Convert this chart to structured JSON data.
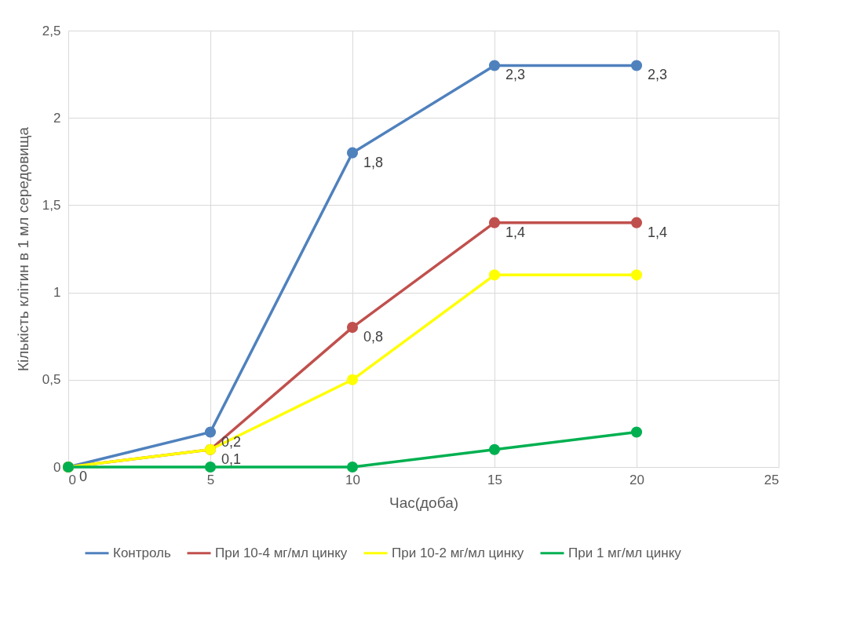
{
  "chart_data": {
    "type": "line",
    "xlabel": "Час(доба)",
    "ylabel": "Кількість клітин в 1 мл середовища",
    "x": [
      0,
      5,
      10,
      15,
      20
    ],
    "series": [
      {
        "name": "Контроль",
        "color": "#4f81bd",
        "values": [
          0,
          0.2,
          1.8,
          2.3,
          2.3
        ],
        "value_labels": [
          "0",
          "0,2",
          "1,8",
          "2,3",
          "2,3"
        ]
      },
      {
        "name": "При 10-4 мг/мл цинку",
        "color": "#c0504d",
        "values": [
          0,
          0.1,
          0.8,
          1.4,
          1.4
        ],
        "value_labels": [
          null,
          "0,1",
          "0,8",
          "1,4",
          "1,4"
        ]
      },
      {
        "name": "При 10-2 мг/мл цинку",
        "color": "#ffff00",
        "values": [
          0,
          0.1,
          0.5,
          1.1,
          1.1
        ]
      },
      {
        "name": "При 1 мг/мл цинку",
        "color": "#00b050",
        "values": [
          0,
          0,
          0,
          0.1,
          0.2
        ]
      }
    ],
    "xlim": [
      0,
      25
    ],
    "xticks": [
      0,
      5,
      10,
      15,
      20,
      25
    ],
    "ylim": [
      0,
      2.5
    ],
    "yticks": [
      0,
      {
        "value": 0.5,
        "label": "0,5"
      },
      1,
      {
        "value": 1.5,
        "label": "1,5"
      },
      2,
      {
        "value": 2.5,
        "label": "2,5"
      }
    ],
    "grid": true,
    "legend": "bottom",
    "marker": "circle",
    "line_style": "solid"
  }
}
